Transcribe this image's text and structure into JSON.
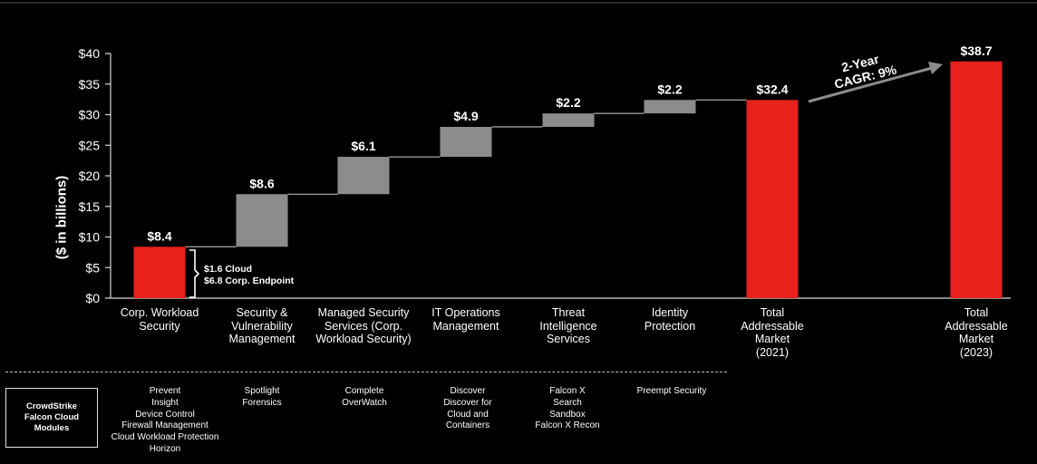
{
  "chart_data": {
    "type": "bar",
    "subtype": "waterfall",
    "title": "",
    "ylabel": "($ in billions)",
    "xlabel": "",
    "ylim": [
      0,
      40
    ],
    "yticks": [
      "$0",
      "$5",
      "$10",
      "$15",
      "$20",
      "$25",
      "$30",
      "$35",
      "$40"
    ],
    "ytick_values": [
      0,
      5,
      10,
      15,
      20,
      25,
      30,
      35,
      40
    ],
    "grid": false,
    "bars": [
      {
        "category": [
          "Corp. Workload",
          "Security"
        ],
        "label": "$8.4",
        "start": 0,
        "end": 8.4,
        "color": "#e8211d"
      },
      {
        "category": [
          "Security &",
          "Vulnerability",
          "Management"
        ],
        "label": "$8.6",
        "start": 8.4,
        "end": 17.0,
        "color": "#8c8c8c"
      },
      {
        "category": [
          "Managed Security",
          "Services (Corp.",
          "Workload Security)"
        ],
        "label": "$6.1",
        "start": 17.0,
        "end": 23.1,
        "color": "#8c8c8c"
      },
      {
        "category": [
          "IT Operations",
          "Management"
        ],
        "label": "$4.9",
        "start": 23.1,
        "end": 28.0,
        "color": "#8c8c8c"
      },
      {
        "category": [
          "Threat",
          "Intelligence",
          "Services"
        ],
        "label": "$2.2",
        "start": 28.0,
        "end": 30.2,
        "color": "#8c8c8c"
      },
      {
        "category": [
          "Identity",
          "Protection"
        ],
        "label": "$2.2",
        "start": 30.2,
        "end": 32.4,
        "color": "#8c8c8c"
      },
      {
        "category": [
          "Total",
          "Addressable",
          "Market",
          "(2021)"
        ],
        "label": "$32.4",
        "start": 0,
        "end": 32.4,
        "color": "#e8211d"
      },
      {
        "category": [
          "Total",
          "Addressable",
          "Market",
          "(2023)"
        ],
        "label": "$38.7",
        "start": 0,
        "end": 38.7,
        "color": "#e8211d"
      }
    ],
    "annotations": {
      "cagr": [
        "2-Year",
        "CAGR: 9%"
      ],
      "brace": [
        "$1.6 Cloud",
        "$6.8 Corp. Endpoint"
      ]
    }
  },
  "modules": {
    "box_label": "CrowdStrike\nFalcon Cloud\nModules",
    "columns": [
      [
        "Prevent",
        "Insight",
        "Device Control",
        "Firewall Management",
        "Cloud Workload Protection",
        "Horizon"
      ],
      [
        "Spotlight",
        "Forensics"
      ],
      [
        "Complete",
        "OverWatch"
      ],
      [
        "Discover",
        "Discover for",
        "Cloud and",
        "Containers"
      ],
      [
        "Falcon X",
        "Search",
        "Sandbox",
        "Falcon X Recon"
      ],
      [
        "Preempt Security"
      ]
    ]
  }
}
